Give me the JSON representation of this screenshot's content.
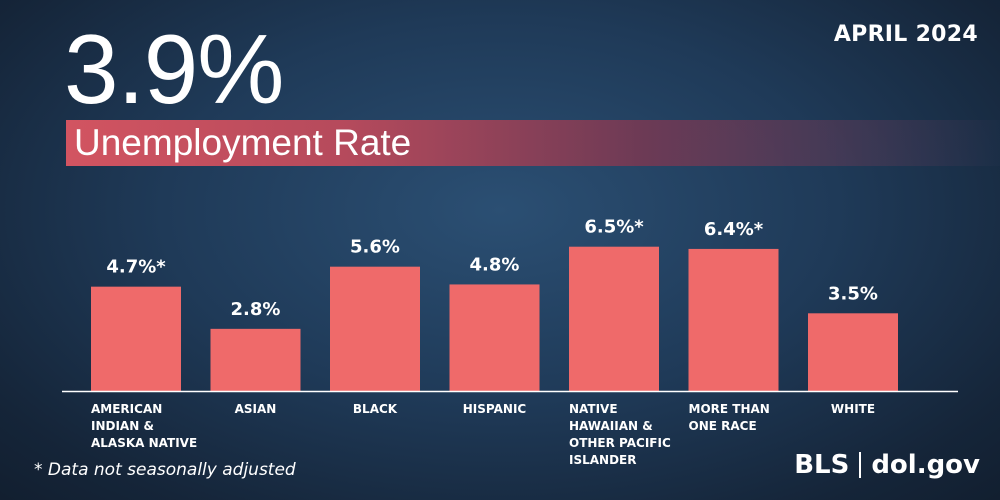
{
  "header": {
    "headline": "3.9%",
    "subtitle": "Unemployment Rate",
    "date": "APRIL 2024"
  },
  "footer": {
    "footnote": "* Data not seasonally adjusted",
    "brand_left": "BLS",
    "brand_right": "dol.gov"
  },
  "colors": {
    "bar": "#ef6a6a",
    "baseline": "#ffffff",
    "text": "#ffffff"
  },
  "chart_data": {
    "type": "bar",
    "categories": [
      [
        "AMERICAN",
        "INDIAN &",
        "ALASKA NATIVE"
      ],
      [
        "ASIAN"
      ],
      [
        "BLACK"
      ],
      [
        "HISPANIC"
      ],
      [
        "NATIVE",
        "HAWAIIAN &",
        "OTHER PACIFIC",
        "ISLANDER"
      ],
      [
        "MORE THAN",
        "ONE RACE"
      ],
      [
        "WHITE"
      ]
    ],
    "values": [
      4.7,
      2.8,
      5.6,
      4.8,
      6.5,
      6.4,
      3.5
    ],
    "labels": [
      "4.7%*",
      "2.8%",
      "5.6%",
      "4.8%",
      "6.5%*",
      "6.4%*",
      "3.5%"
    ],
    "ylim": [
      0,
      6.5
    ],
    "grid": false,
    "legend": "none"
  }
}
